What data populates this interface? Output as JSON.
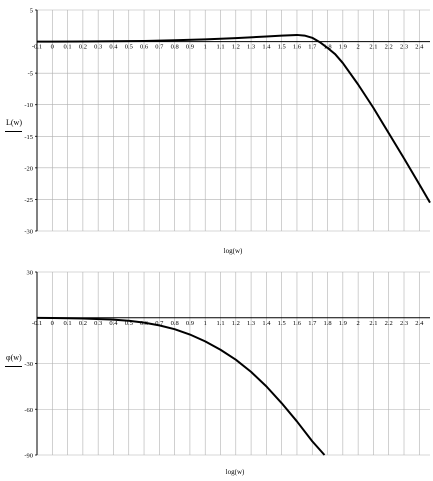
{
  "chart_data": [
    {
      "type": "line",
      "ylabel": "L(w)",
      "xlabel": "log(w)",
      "xlim": [
        -0.1,
        2.47
      ],
      "ylim": [
        -30,
        5
      ],
      "x_ticks": [
        "-0.1",
        "0",
        "0.1",
        "0.2",
        "0.3",
        "0.4",
        "0.5",
        "0.6",
        "0.7",
        "0.8",
        "0.9",
        "1",
        "1.1",
        "1.2",
        "1.3",
        "1.4",
        "1.5",
        "1.6",
        "1.7",
        "1.8",
        "1.9",
        "2",
        "2.1",
        "2.2",
        "2.3",
        "2.4"
      ],
      "y_ticks": [
        "5",
        "-5",
        "-10",
        "-15",
        "-20",
        "-25",
        "-30"
      ],
      "grid": true,
      "series": [
        {
          "x": [
            -0.1,
            0.0,
            0.2,
            0.4,
            0.6,
            0.8,
            1.0,
            1.2,
            1.4,
            1.5,
            1.6,
            1.65,
            1.7,
            1.75,
            1.8,
            1.85,
            1.9,
            2.0,
            2.1,
            2.2,
            2.3,
            2.4,
            2.47
          ],
          "y": [
            0.0,
            0.0,
            0.02,
            0.05,
            0.1,
            0.2,
            0.35,
            0.55,
            0.8,
            0.95,
            1.05,
            0.95,
            0.6,
            -0.1,
            -1.0,
            -2.0,
            -3.4,
            -6.8,
            -10.5,
            -14.5,
            -18.5,
            -22.6,
            -25.5
          ],
          "color": "#000000"
        }
      ]
    },
    {
      "type": "line",
      "ylabel": "φ(w)",
      "xlabel": "log(w)",
      "xlim": [
        -0.1,
        2.47
      ],
      "ylim": [
        -90,
        30
      ],
      "x_ticks": [
        "-0.1",
        "0",
        "0.1",
        "0.2",
        "0.3",
        "0.4",
        "0.5",
        "0.6",
        "0.7",
        "0.8",
        "0.9",
        "1",
        "1.1",
        "1.2",
        "1.3",
        "1.4",
        "1.5",
        "1.6",
        "1.7",
        "1.8",
        "1.9",
        "2",
        "2.1",
        "2.2",
        "2.3",
        "2.4"
      ],
      "y_ticks": [
        "30",
        "-30",
        "-60",
        "-90"
      ],
      "grid": true,
      "series": [
        {
          "x": [
            -0.1,
            0.0,
            0.2,
            0.4,
            0.5,
            0.6,
            0.7,
            0.8,
            0.9,
            1.0,
            1.1,
            1.2,
            1.3,
            1.4,
            1.5,
            1.6,
            1.7,
            1.78
          ],
          "y": [
            -0.1,
            -0.2,
            -0.5,
            -1.2,
            -2.0,
            -3.2,
            -5.0,
            -7.5,
            -11.0,
            -15.5,
            -21.0,
            -27.5,
            -35.5,
            -45.0,
            -56.0,
            -68.0,
            -81.0,
            -90.0
          ],
          "color": "#000000"
        }
      ]
    }
  ]
}
